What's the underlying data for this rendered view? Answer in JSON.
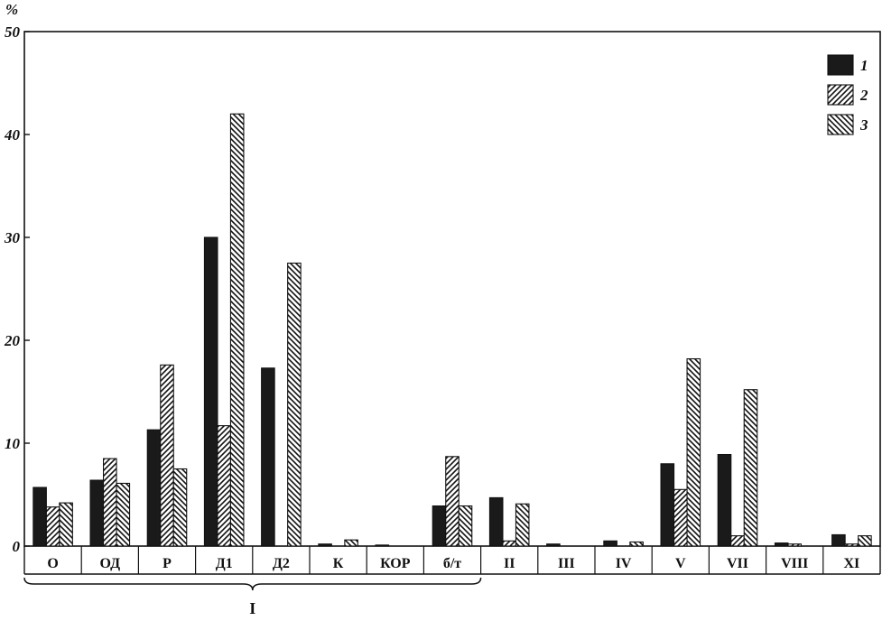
{
  "chart_data": {
    "type": "bar",
    "ylabel": "%",
    "ylim": [
      0,
      50
    ],
    "yticks": [
      0,
      10,
      20,
      30,
      40,
      50
    ],
    "categories": [
      "О",
      "ОД",
      "Р",
      "Д1",
      "Д2",
      "К",
      "КОР",
      "б/т",
      "II",
      "III",
      "IV",
      "V",
      "VII",
      "VIII",
      "XI"
    ],
    "group_bracket": {
      "label": "I",
      "from": "О",
      "to": "б/т"
    },
    "legend_position": "top-right",
    "grid": false,
    "series": [
      {
        "name": "1",
        "pattern": "solid",
        "color": "#1a1a1a",
        "values": [
          5.7,
          6.4,
          11.3,
          30.0,
          17.3,
          0.2,
          0.1,
          3.9,
          4.7,
          0.2,
          0.5,
          8.0,
          8.9,
          0.3,
          1.1
        ]
      },
      {
        "name": "2",
        "pattern": "hatch-forward",
        "values": [
          3.8,
          8.5,
          17.6,
          11.7,
          0,
          0,
          0,
          8.7,
          0.5,
          0,
          0,
          5.5,
          1.0,
          0.2,
          0.2
        ]
      },
      {
        "name": "3",
        "pattern": "hatch-backward",
        "values": [
          4.2,
          6.1,
          7.5,
          42.0,
          27.5,
          0.6,
          0,
          3.9,
          4.1,
          0,
          0.4,
          18.2,
          15.2,
          0,
          1.0
        ]
      }
    ]
  }
}
